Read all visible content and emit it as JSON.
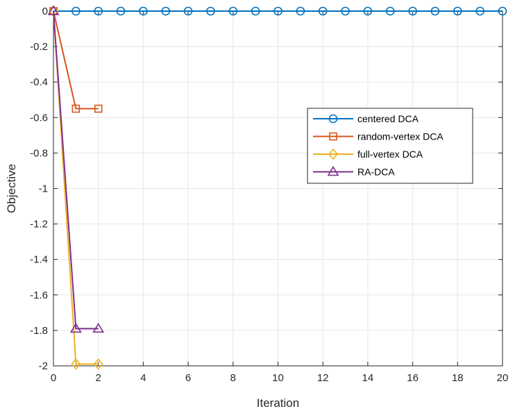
{
  "chart_data": {
    "type": "line",
    "title": "",
    "xlabel": "Iteration",
    "ylabel": "Objective",
    "xlim": [
      0,
      20
    ],
    "ylim": [
      -2,
      0
    ],
    "xticks": [
      "0",
      "2",
      "4",
      "6",
      "8",
      "10",
      "12",
      "14",
      "16",
      "18",
      "20"
    ],
    "yticks": [
      "0",
      "-0.2",
      "-0.4",
      "-0.6",
      "-0.8",
      "-1",
      "-1.2",
      "-1.4",
      "-1.6",
      "-1.8",
      "-2"
    ],
    "grid": true,
    "legend_position": "upper-right inside",
    "series": [
      {
        "name": "centered DCA",
        "color": "#0072BD",
        "marker": "circle",
        "x": [
          0,
          1,
          2,
          3,
          4,
          5,
          6,
          7,
          8,
          9,
          10,
          11,
          12,
          13,
          14,
          15,
          16,
          17,
          18,
          19,
          20
        ],
        "y": [
          0,
          0,
          0,
          0,
          0,
          0,
          0,
          0,
          0,
          0,
          0,
          0,
          0,
          0,
          0,
          0,
          0,
          0,
          0,
          0,
          0
        ]
      },
      {
        "name": "random-vertex DCA",
        "color": "#D95319",
        "marker": "square",
        "x": [
          0,
          1,
          2
        ],
        "y": [
          0,
          -0.55,
          -0.55
        ]
      },
      {
        "name": "full-vertex DCA",
        "color": "#EDB120",
        "marker": "diamond",
        "x": [
          0,
          1,
          2
        ],
        "y": [
          0,
          -1.99,
          -1.99
        ]
      },
      {
        "name": "RA-DCA",
        "color": "#7E2F8E",
        "marker": "triangle",
        "x": [
          0,
          1,
          2
        ],
        "y": [
          0,
          -1.79,
          -1.79
        ]
      }
    ]
  }
}
